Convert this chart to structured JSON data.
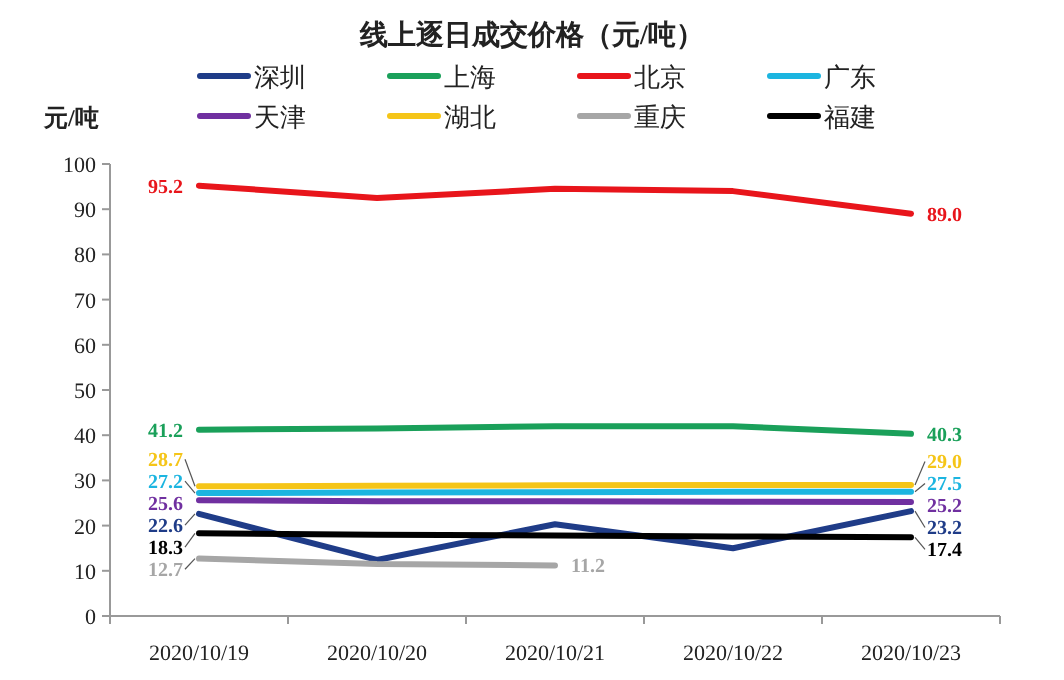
{
  "chart_data": {
    "type": "line",
    "title": "线上逐日成交价格（元/吨）",
    "ylabel": "元/吨",
    "categories": [
      "2020/10/19",
      "2020/10/20",
      "2020/10/21",
      "2020/10/22",
      "2020/10/23"
    ],
    "ylim": [
      0,
      100
    ],
    "yticks": [
      0,
      10,
      20,
      30,
      40,
      50,
      60,
      70,
      80,
      90,
      100
    ],
    "grid": false,
    "legend": "top",
    "marker": "none",
    "line_style": "solid",
    "series": [
      {
        "name": "深圳",
        "color": "#1f3c88",
        "values": [
          22.6,
          12.4,
          20.3,
          15.0,
          23.2
        ],
        "value_labels": [
          "22.6",
          null,
          null,
          null,
          "23.2"
        ]
      },
      {
        "name": "上海",
        "color": "#1aa05a",
        "values": [
          41.2,
          41.5,
          42.0,
          42.0,
          40.3
        ],
        "value_labels": [
          "41.2",
          null,
          null,
          null,
          "40.3"
        ]
      },
      {
        "name": "北京",
        "color": "#e8151b",
        "values": [
          95.2,
          92.5,
          94.5,
          94.0,
          89.0
        ],
        "value_labels": [
          "95.2",
          null,
          null,
          null,
          "89.0"
        ]
      },
      {
        "name": "广东",
        "color": "#1cb5e0",
        "values": [
          27.2,
          27.3,
          27.4,
          27.5,
          27.5
        ],
        "value_labels": [
          "27.2",
          null,
          null,
          null,
          "27.5"
        ]
      },
      {
        "name": "天津",
        "color": "#7030a0",
        "values": [
          25.6,
          25.4,
          25.4,
          25.3,
          25.2
        ],
        "value_labels": [
          "25.6",
          null,
          null,
          null,
          "25.2"
        ]
      },
      {
        "name": "湖北",
        "color": "#f5c518",
        "values": [
          28.7,
          28.8,
          28.9,
          29.0,
          29.0
        ],
        "value_labels": [
          "28.7",
          null,
          null,
          null,
          "29.0"
        ]
      },
      {
        "name": "重庆",
        "color": "#a6a6a6",
        "values": [
          12.7,
          11.5,
          11.2,
          null,
          null
        ],
        "value_labels": [
          "12.7",
          null,
          "11.2",
          null,
          null
        ]
      },
      {
        "name": "福建",
        "color": "#000000",
        "values": [
          18.3,
          18.0,
          17.8,
          17.6,
          17.4
        ],
        "value_labels": [
          "18.3",
          null,
          null,
          null,
          "17.4"
        ]
      }
    ]
  }
}
